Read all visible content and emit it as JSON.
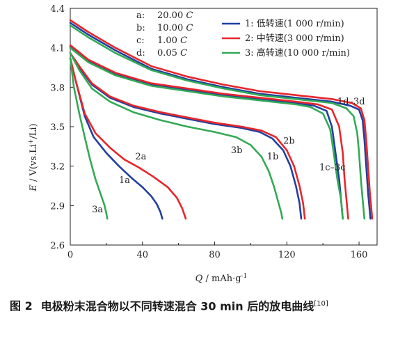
{
  "chart_data": {
    "type": "line",
    "xlabel": {
      "var": "Q",
      "unit": " / mAh·g",
      "exp": "-1"
    },
    "ylabel": {
      "var": "E",
      "unit": " / V(vs.Li",
      "sup": "+",
      "tail": "/Li)"
    },
    "xlim": [
      0,
      170
    ],
    "ylim": [
      2.6,
      4.4
    ],
    "xticks": [
      0,
      40,
      80,
      120,
      160
    ],
    "yticks": [
      2.6,
      2.9,
      3.2,
      3.5,
      3.8,
      4.1,
      4.4
    ],
    "yticklabels": [
      "2.6",
      "2.9",
      "3.2",
      "3.5",
      "3.8",
      "4.1",
      "4.4"
    ],
    "grid": false,
    "legend": {
      "position": "top-right",
      "entries": [
        "1:  低转速(1 000 r/min)",
        "2:  中转速(3 000 r/min)",
        "3:  高转速(10 000 r/min)"
      ]
    },
    "rate_legend": [
      {
        "key": "a:",
        "value": "20.00 C"
      },
      {
        "key": "b:",
        "value": "10.00 C"
      },
      {
        "key": "c:",
        "value": "1.00 C"
      },
      {
        "key": "d:",
        "value": "0.05 C"
      }
    ],
    "colors": {
      "1": "#2040a0",
      "2": "#e8262a",
      "3": "#33aa55"
    },
    "series": [
      {
        "name": "1a",
        "color_key": "1",
        "points": [
          [
            0,
            4.02
          ],
          [
            3,
            3.85
          ],
          [
            8,
            3.58
          ],
          [
            13,
            3.42
          ],
          [
            20,
            3.3
          ],
          [
            27,
            3.2
          ],
          [
            34,
            3.11
          ],
          [
            40,
            3.04
          ],
          [
            45,
            2.97
          ],
          [
            48,
            2.91
          ],
          [
            50,
            2.85
          ],
          [
            51,
            2.8
          ]
        ]
      },
      {
        "name": "2a",
        "color_key": "2",
        "points": [
          [
            0,
            4.02
          ],
          [
            3,
            3.85
          ],
          [
            8,
            3.6
          ],
          [
            14,
            3.45
          ],
          [
            22,
            3.34
          ],
          [
            30,
            3.25
          ],
          [
            38,
            3.19
          ],
          [
            46,
            3.12
          ],
          [
            54,
            3.04
          ],
          [
            59,
            2.96
          ],
          [
            62,
            2.88
          ],
          [
            64,
            2.8
          ]
        ]
      },
      {
        "name": "3a",
        "color_key": "3",
        "points": [
          [
            0,
            4.02
          ],
          [
            2,
            3.8
          ],
          [
            5,
            3.6
          ],
          [
            8,
            3.42
          ],
          [
            11,
            3.25
          ],
          [
            14,
            3.1
          ],
          [
            17,
            2.98
          ],
          [
            19,
            2.9
          ],
          [
            20,
            2.84
          ],
          [
            20.5,
            2.8
          ]
        ]
      },
      {
        "name": "1b",
        "color_key": "1",
        "points": [
          [
            0,
            4.06
          ],
          [
            5,
            3.95
          ],
          [
            12,
            3.82
          ],
          [
            22,
            3.72
          ],
          [
            35,
            3.65
          ],
          [
            50,
            3.6
          ],
          [
            65,
            3.56
          ],
          [
            80,
            3.52
          ],
          [
            95,
            3.49
          ],
          [
            105,
            3.46
          ],
          [
            112,
            3.41
          ],
          [
            118,
            3.32
          ],
          [
            122,
            3.2
          ],
          [
            125,
            3.05
          ],
          [
            127,
            2.92
          ],
          [
            128,
            2.8
          ]
        ]
      },
      {
        "name": "2b",
        "color_key": "2",
        "points": [
          [
            0,
            4.06
          ],
          [
            5,
            3.96
          ],
          [
            12,
            3.83
          ],
          [
            22,
            3.73
          ],
          [
            35,
            3.66
          ],
          [
            50,
            3.61
          ],
          [
            65,
            3.57
          ],
          [
            80,
            3.53
          ],
          [
            95,
            3.5
          ],
          [
            106,
            3.47
          ],
          [
            114,
            3.42
          ],
          [
            120,
            3.32
          ],
          [
            124,
            3.2
          ],
          [
            127,
            3.05
          ],
          [
            129,
            2.92
          ],
          [
            130,
            2.8
          ]
        ]
      },
      {
        "name": "3b",
        "color_key": "3",
        "points": [
          [
            0,
            4.06
          ],
          [
            5,
            3.93
          ],
          [
            12,
            3.79
          ],
          [
            22,
            3.69
          ],
          [
            35,
            3.61
          ],
          [
            50,
            3.55
          ],
          [
            65,
            3.5
          ],
          [
            80,
            3.46
          ],
          [
            92,
            3.42
          ],
          [
            100,
            3.36
          ],
          [
            106,
            3.27
          ],
          [
            110,
            3.16
          ],
          [
            113,
            3.04
          ],
          [
            115,
            2.94
          ],
          [
            117,
            2.84
          ],
          [
            117.5,
            2.8
          ]
        ]
      },
      {
        "name": "1c",
        "color_key": "1",
        "points": [
          [
            0,
            4.11
          ],
          [
            10,
            4.0
          ],
          [
            25,
            3.9
          ],
          [
            45,
            3.82
          ],
          [
            65,
            3.78
          ],
          [
            85,
            3.74
          ],
          [
            105,
            3.71
          ],
          [
            125,
            3.68
          ],
          [
            135,
            3.66
          ],
          [
            142,
            3.62
          ],
          [
            145,
            3.5
          ],
          [
            147,
            3.3
          ],
          [
            149,
            3.1
          ],
          [
            150,
            2.95
          ],
          [
            151,
            2.8
          ]
        ]
      },
      {
        "name": "2c",
        "color_key": "2",
        "points": [
          [
            0,
            4.12
          ],
          [
            10,
            4.01
          ],
          [
            25,
            3.91
          ],
          [
            45,
            3.83
          ],
          [
            65,
            3.79
          ],
          [
            85,
            3.75
          ],
          [
            105,
            3.72
          ],
          [
            125,
            3.69
          ],
          [
            137,
            3.67
          ],
          [
            145,
            3.63
          ],
          [
            149,
            3.5
          ],
          [
            151,
            3.3
          ],
          [
            152,
            3.1
          ],
          [
            153,
            2.95
          ],
          [
            154,
            2.8
          ]
        ]
      },
      {
        "name": "3c",
        "color_key": "3",
        "points": [
          [
            0,
            4.1
          ],
          [
            10,
            3.99
          ],
          [
            25,
            3.89
          ],
          [
            45,
            3.81
          ],
          [
            65,
            3.77
          ],
          [
            85,
            3.73
          ],
          [
            105,
            3.7
          ],
          [
            125,
            3.67
          ],
          [
            133,
            3.65
          ],
          [
            140,
            3.6
          ],
          [
            144,
            3.48
          ],
          [
            146,
            3.3
          ],
          [
            148,
            3.1
          ],
          [
            150,
            2.95
          ],
          [
            151,
            2.8
          ]
        ]
      },
      {
        "name": "1d",
        "color_key": "1",
        "points": [
          [
            0,
            4.29
          ],
          [
            10,
            4.2
          ],
          [
            25,
            4.08
          ],
          [
            45,
            3.94
          ],
          [
            65,
            3.86
          ],
          [
            85,
            3.8
          ],
          [
            105,
            3.75
          ],
          [
            125,
            3.72
          ],
          [
            145,
            3.69
          ],
          [
            155,
            3.66
          ],
          [
            160,
            3.63
          ],
          [
            162,
            3.55
          ],
          [
            163,
            3.4
          ],
          [
            164,
            3.2
          ],
          [
            165,
            3.0
          ],
          [
            166,
            2.85
          ],
          [
            166.3,
            2.8
          ]
        ]
      },
      {
        "name": "2d",
        "color_key": "2",
        "points": [
          [
            0,
            4.31
          ],
          [
            10,
            4.22
          ],
          [
            25,
            4.1
          ],
          [
            45,
            3.96
          ],
          [
            65,
            3.88
          ],
          [
            85,
            3.82
          ],
          [
            105,
            3.77
          ],
          [
            125,
            3.74
          ],
          [
            145,
            3.71
          ],
          [
            156,
            3.68
          ],
          [
            161,
            3.64
          ],
          [
            163,
            3.55
          ],
          [
            164,
            3.4
          ],
          [
            165,
            3.2
          ],
          [
            166,
            3.0
          ],
          [
            167,
            2.85
          ],
          [
            167.3,
            2.8
          ]
        ]
      },
      {
        "name": "3d",
        "color_key": "3",
        "points": [
          [
            0,
            4.27
          ],
          [
            10,
            4.18
          ],
          [
            25,
            4.06
          ],
          [
            45,
            3.93
          ],
          [
            65,
            3.85
          ],
          [
            85,
            3.79
          ],
          [
            105,
            3.74
          ],
          [
            125,
            3.71
          ],
          [
            145,
            3.68
          ],
          [
            153,
            3.64
          ],
          [
            157,
            3.58
          ],
          [
            159,
            3.45
          ],
          [
            160,
            3.3
          ],
          [
            161,
            3.1
          ],
          [
            162,
            2.95
          ],
          [
            163,
            2.8
          ]
        ]
      }
    ],
    "annotations": [
      {
        "text": "3a",
        "x": 12,
        "y": 2.85
      },
      {
        "text": "1a",
        "x": 27,
        "y": 3.07
      },
      {
        "text": "2a",
        "x": 36,
        "y": 3.25
      },
      {
        "text": "3b",
        "x": 89,
        "y": 3.3
      },
      {
        "text": "1b",
        "x": 109,
        "y": 3.25
      },
      {
        "text": "2b",
        "x": 118,
        "y": 3.37
      },
      {
        "text": "1c–3c",
        "x": 138,
        "y": 3.17
      },
      {
        "text": "1d–3d",
        "x": 148,
        "y": 3.67
      }
    ]
  },
  "caption": {
    "number": "图 2",
    "text": "电极粉末混合物以不同转速混合 30 min 后的放电曲线",
    "ref": "[10]"
  }
}
